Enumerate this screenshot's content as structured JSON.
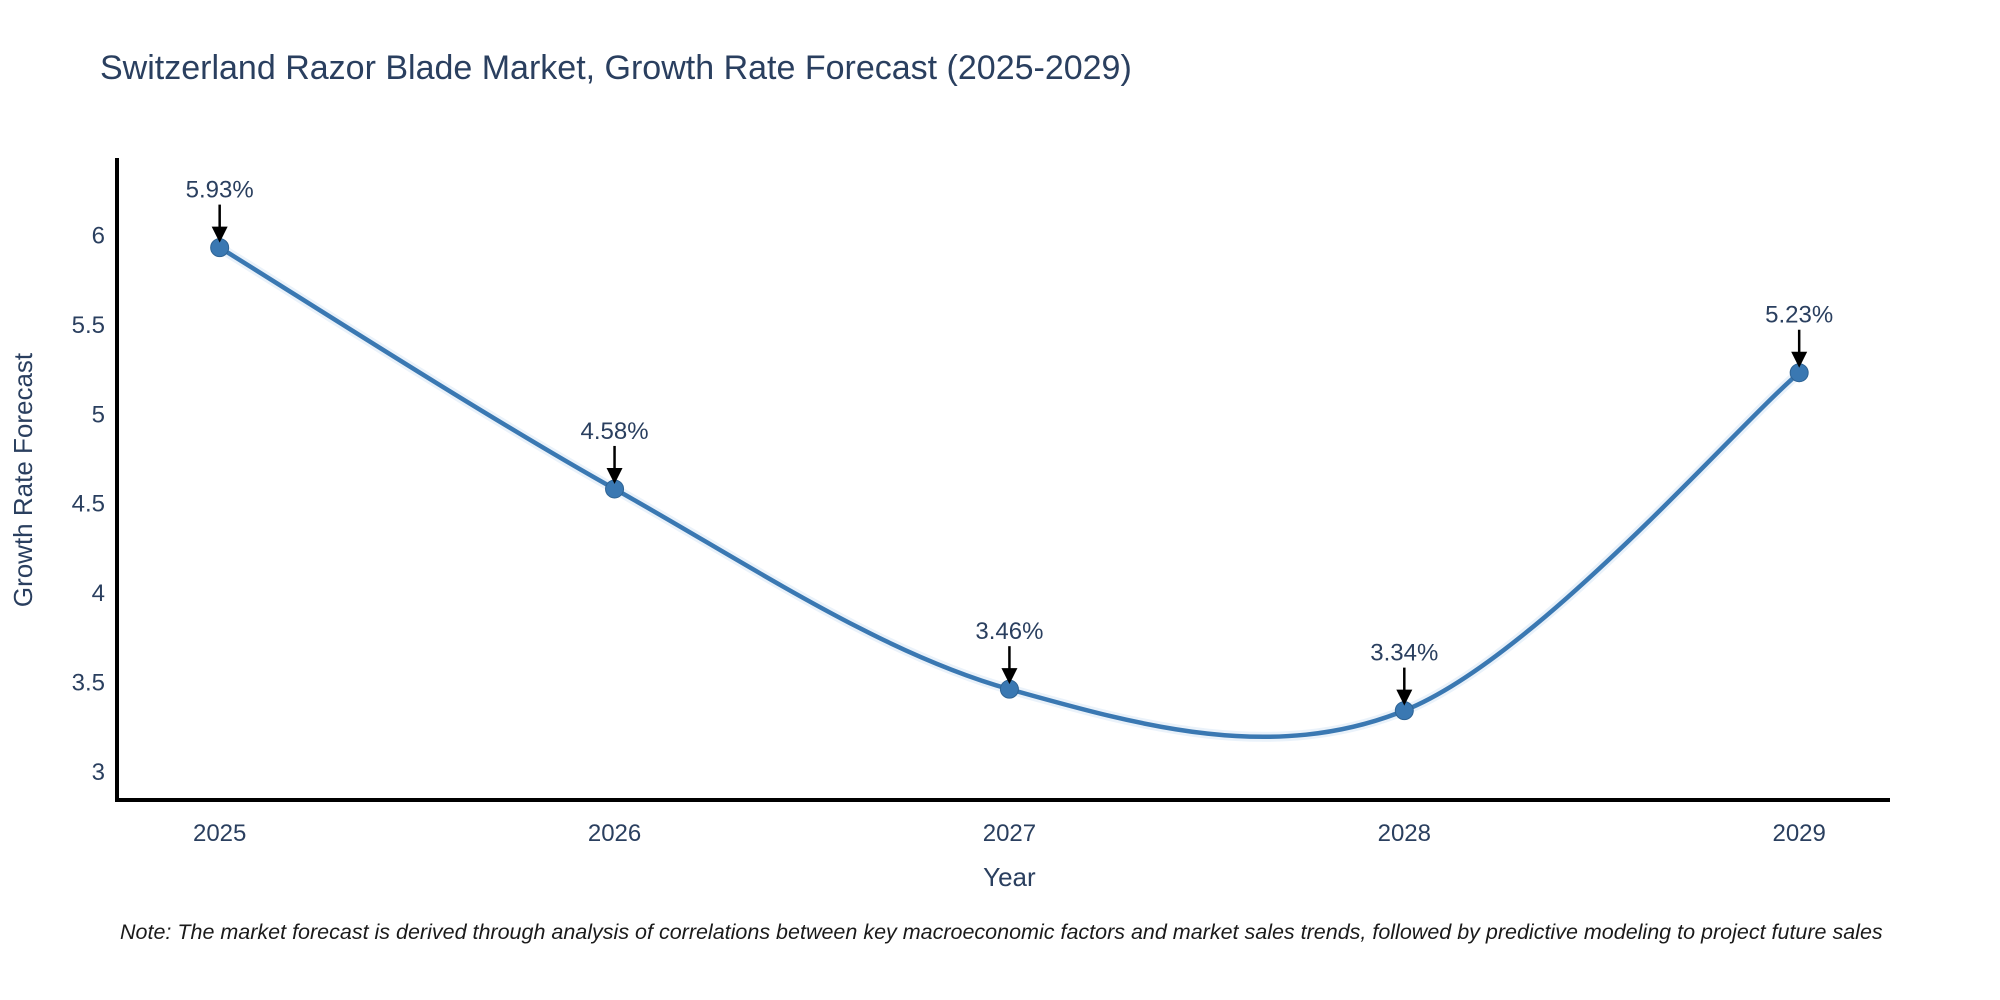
{
  "title": "Switzerland Razor Blade Market, Growth Rate Forecast (2025-2029)",
  "note": "Note: The market forecast is derived through analysis of correlations between key macroeconomic factors and market sales trends, followed by predictive modeling to project future sales",
  "chart_data": {
    "type": "line",
    "title": "Switzerland Razor Blade Market, Growth Rate Forecast (2025-2029)",
    "x": [
      2025,
      2026,
      2027,
      2028,
      2029
    ],
    "series": [
      {
        "name": "Growth Rate Forecast",
        "values": [
          5.93,
          4.58,
          3.46,
          3.34,
          5.23
        ]
      }
    ],
    "point_labels": [
      "5.93%",
      "4.58%",
      "3.46%",
      "3.34%",
      "5.23%"
    ],
    "xlabel": "Year",
    "ylabel": "Growth Rate Forecast",
    "xtick_labels": [
      "2025",
      "2026",
      "2027",
      "2028",
      "2029"
    ],
    "ytick_values": [
      3,
      3.5,
      4,
      4.5,
      5,
      5.5,
      6
    ],
    "ytick_labels": [
      "3",
      "3.5",
      "4",
      "4.5",
      "5",
      "5.5",
      "6"
    ],
    "xlim": [
      2024.74,
      2029.23
    ],
    "ylim": [
      2.84,
      6.42
    ],
    "line_shape": "spline",
    "grid": false,
    "legend_position": "none",
    "annotations_have_arrows": true,
    "colors": {
      "line": "#3a78b2",
      "line_halo": "#dceaf7",
      "marker": "#3a78b2",
      "marker_edge": "#2e6394",
      "axis_line": "#000000",
      "tick_text": "#2a3f5f",
      "axis_title_text": "#2a3f5f",
      "annotation_text": "#2a3f5f",
      "arrow": "#000000",
      "title_text": "#2a3f5f",
      "background": "#ffffff"
    }
  }
}
